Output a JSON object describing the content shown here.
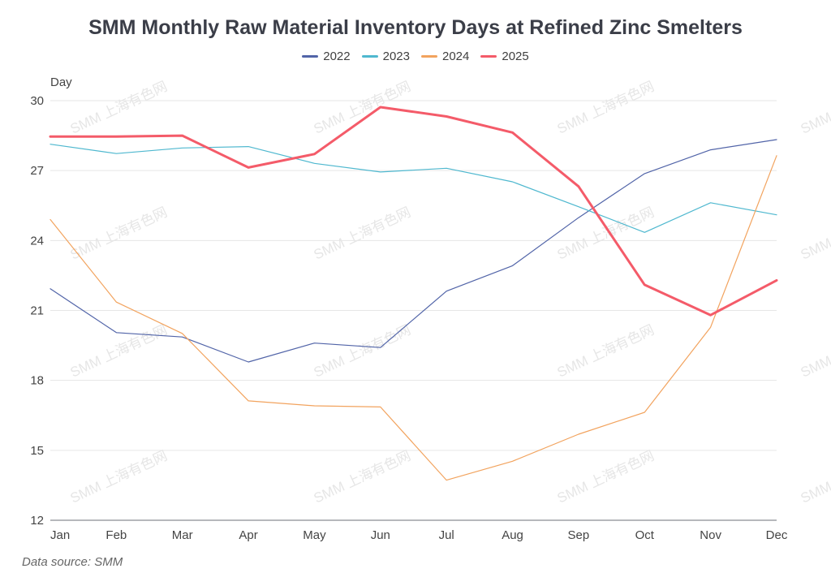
{
  "chart_data": {
    "type": "line",
    "title": "SMM Monthly Raw Material Inventory Days at Refined Zinc Smelters",
    "xlabel": "",
    "ylabel": "Day",
    "categories": [
      "Jan",
      "Feb",
      "Mar",
      "Apr",
      "May",
      "Jun",
      "Jul",
      "Aug",
      "Sep",
      "Oct",
      "Nov",
      "Dec"
    ],
    "ylim": [
      12,
      30
    ],
    "yticks": [
      12,
      15,
      18,
      21,
      24,
      27,
      30
    ],
    "grid": true,
    "legend_position": "top-center",
    "series": [
      {
        "name": "2022",
        "color": "#5164a8",
        "emphasis": false,
        "values": [
          21.93,
          20.05,
          19.86,
          18.79,
          19.6,
          19.41,
          21.83,
          22.92,
          24.98,
          26.87,
          27.89,
          28.33
        ]
      },
      {
        "name": "2023",
        "color": "#4fb8cf",
        "emphasis": false,
        "values": [
          28.13,
          27.73,
          27.97,
          28.03,
          27.31,
          26.94,
          27.1,
          26.52,
          25.45,
          24.35,
          25.62,
          25.1
        ]
      },
      {
        "name": "2024",
        "color": "#f2a35e",
        "emphasis": false,
        "values": [
          24.9,
          21.36,
          20.01,
          17.12,
          16.91,
          16.86,
          13.72,
          14.53,
          15.69,
          16.63,
          20.28,
          27.64
        ]
      },
      {
        "name": "2025",
        "color": "#f45b69",
        "emphasis": true,
        "values": [
          28.46,
          28.46,
          28.5,
          27.13,
          27.71,
          29.72,
          29.32,
          28.63,
          26.32,
          22.1,
          20.8,
          22.29
        ]
      }
    ],
    "watermark": "SMM 上海有色网",
    "source": "Data source:  SMM"
  }
}
